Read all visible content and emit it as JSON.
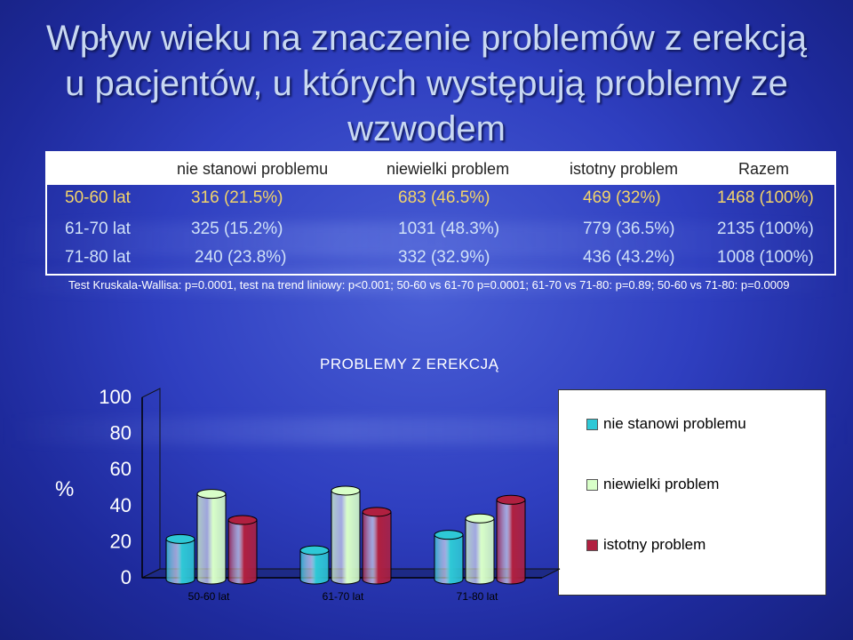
{
  "title": "Wpływ wieku na znaczenie problemów z erekcją u pacjentów, u których występują problemy ze wzwodem",
  "table": {
    "headers": [
      "nie stanowi problemu",
      "niewielki problem",
      "istotny problem",
      "Razem"
    ],
    "rows": [
      {
        "label": "50-60 lat",
        "values": [
          "316 (21.5%)",
          "683 (46.5%)",
          "469 (32%)",
          "1468 (100%)"
        ],
        "color": "#f2d46a"
      },
      {
        "label": "61-70 lat",
        "values": [
          "325 (15.2%)",
          "1031 (48.3%)",
          "779 (36.5%)",
          "2135 (100%)"
        ],
        "color": "#cfe0f7"
      },
      {
        "label": "71-80 lat",
        "values": [
          "240 (23.8%)",
          "332 (32.9%)",
          "436 (43.2%)",
          "1008 (100%)"
        ],
        "color": "#cfe0f7"
      }
    ]
  },
  "note": "Test Kruskala-Wallisa: p=0.0001, test na trend liniowy: p<0.001; 50-60 vs 61-70 p=0.0001; 61-70 vs 71-80: p=0.89; 50-60 vs 71-80: p=0.0009",
  "chart_data": {
    "type": "bar",
    "title": "PROBLEMY Z EREKCJĄ",
    "ylabel": "%",
    "ylim": [
      0,
      100
    ],
    "yticks": [
      "0",
      "20",
      "40",
      "60",
      "80",
      "100"
    ],
    "categories": [
      "50-60 lat",
      "61-70 lat",
      "71-80 lat"
    ],
    "series": [
      {
        "name": "nie stanowi problemu",
        "values": [
          21.5,
          15.2,
          23.8
        ],
        "color": "#2ec8d6"
      },
      {
        "name": "niewielki problem",
        "values": [
          46.5,
          48.3,
          32.9
        ],
        "color": "#d8ffc8"
      },
      {
        "name": "istotny problem",
        "values": [
          32,
          36.5,
          43.2
        ],
        "color": "#b02040"
      }
    ],
    "legend_position": "right",
    "grid": false
  }
}
